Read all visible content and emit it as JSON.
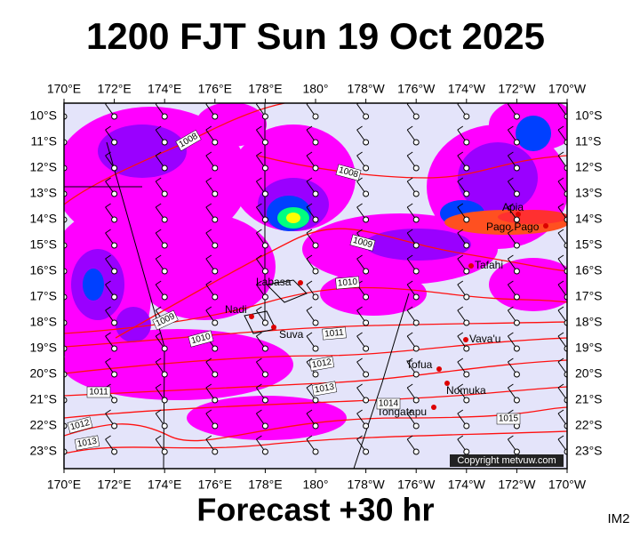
{
  "title": "1200 FJT Sun 19 Oct 2025",
  "footer": "Forecast +30 hr",
  "corner_label": "IM2",
  "copyright": "Copyright metvuw.com",
  "longitude_labels": [
    "170°E",
    "172°E",
    "174°E",
    "176°E",
    "178°E",
    "180°",
    "178°W",
    "176°W",
    "174°W",
    "172°W",
    "170°W"
  ],
  "latitude_labels": [
    "10°S",
    "11°S",
    "12°S",
    "13°S",
    "14°S",
    "15°S",
    "16°S",
    "17°S",
    "18°S",
    "19°S",
    "20°S",
    "21°S",
    "22°S",
    "23°S"
  ],
  "places": [
    "Apia",
    "Pago Pago",
    "Tafahi",
    "Labasa",
    "Nadi",
    "Suva",
    "Vava'u",
    "Tofua",
    "Nomuka",
    "Tongatapu"
  ],
  "isobar_labels": [
    "1008",
    "1008",
    "1009",
    "1010",
    "1009",
    "1010",
    "1011",
    "1012",
    "1013",
    "1011",
    "1012",
    "1013",
    "1014",
    "1015"
  ]
}
